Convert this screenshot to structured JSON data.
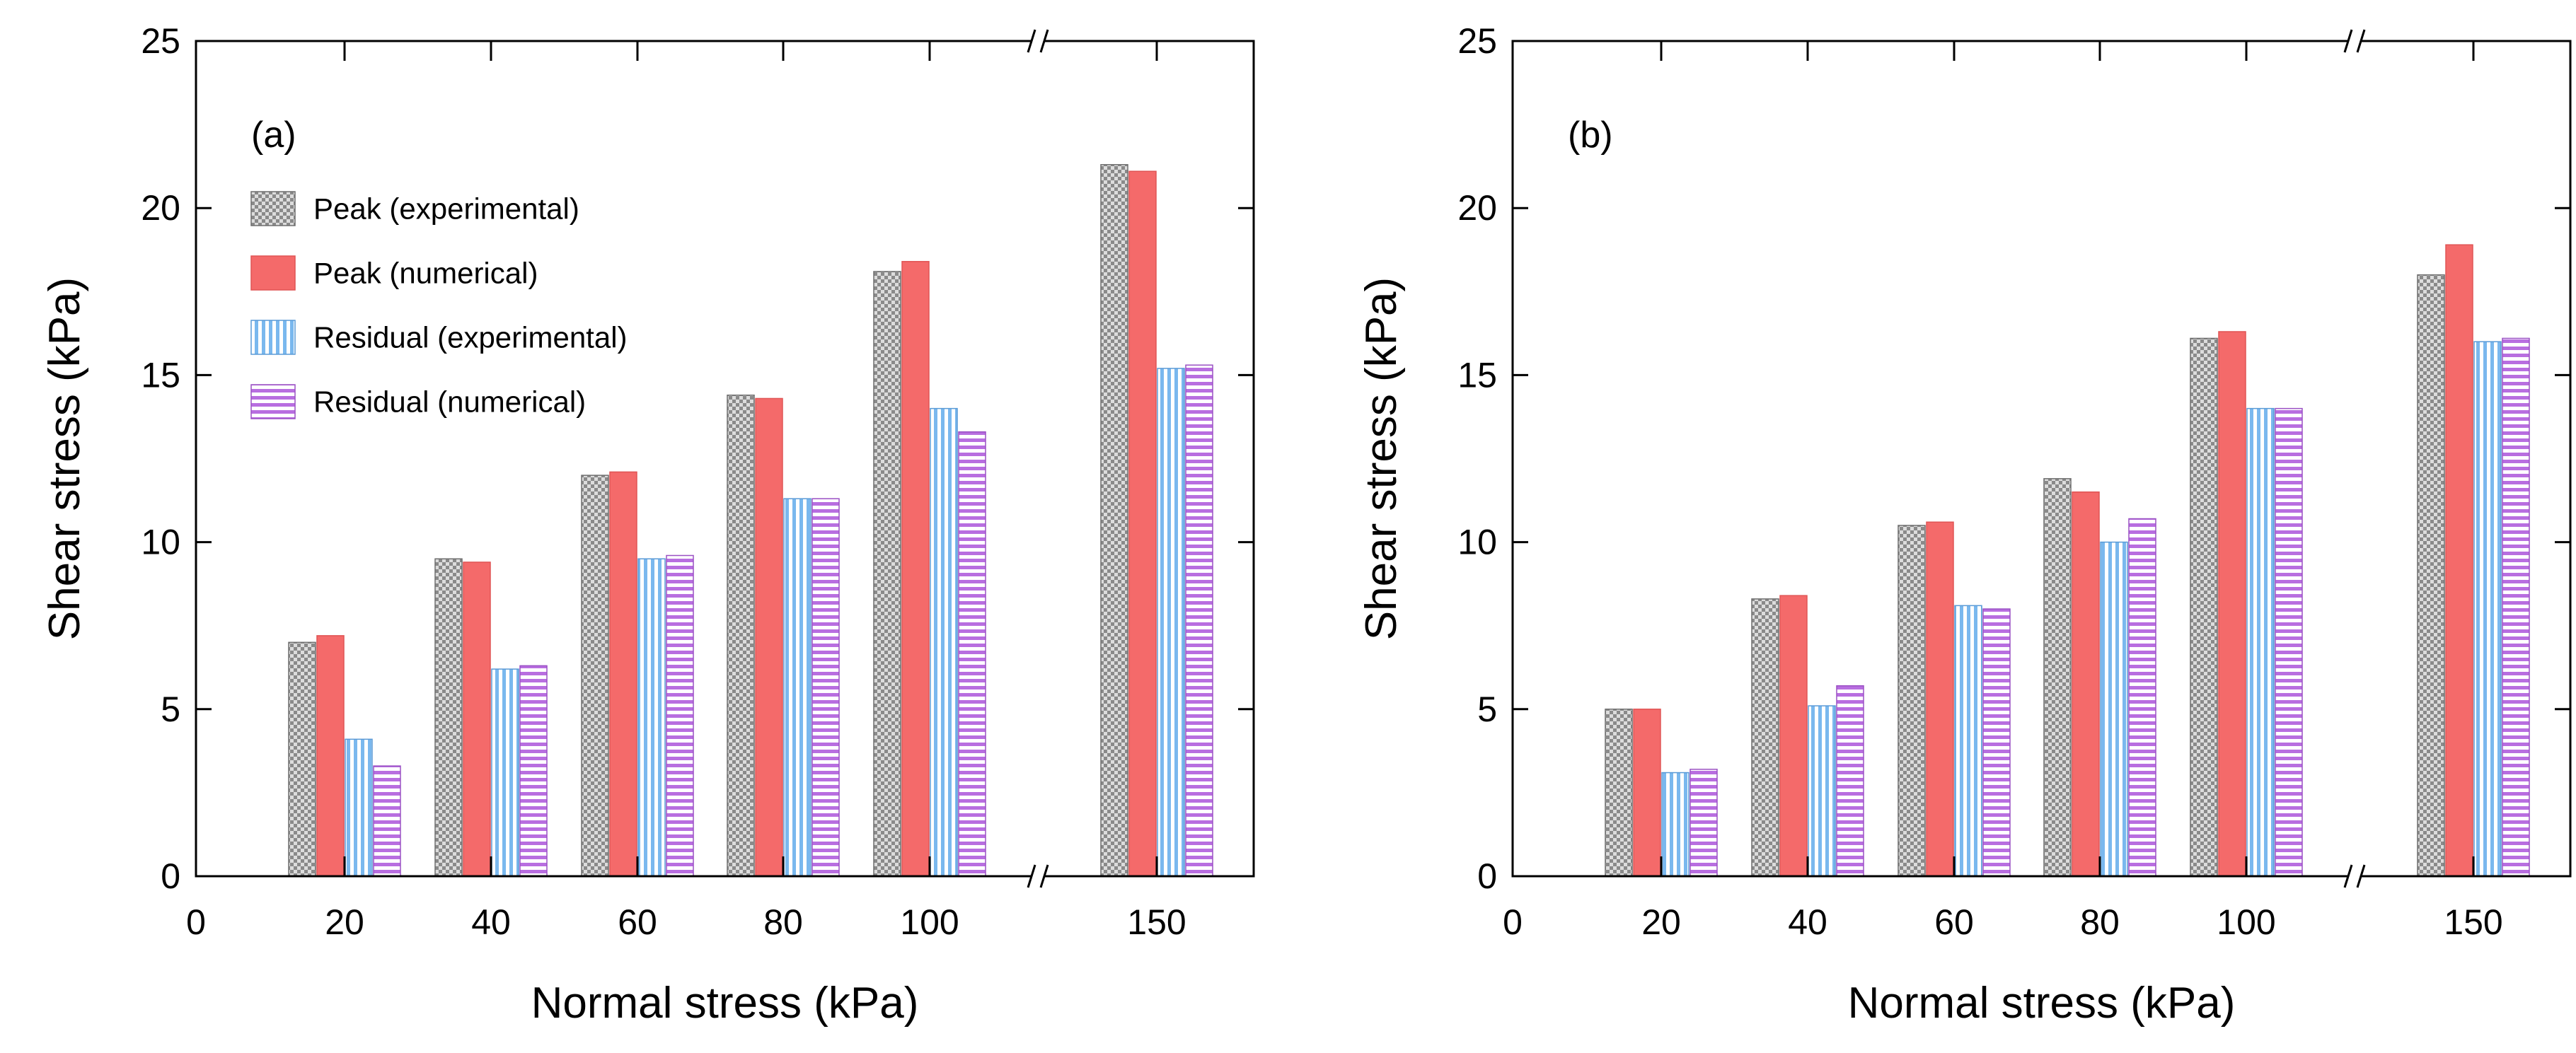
{
  "figure": {
    "colors": {
      "peak_experimental": "#9a9a9a",
      "peak_numerical": "#f46a6a",
      "residual_experimental": "#7ab8ee",
      "residual_numerical": "#b86ee0",
      "axis": "#000000"
    },
    "patterns": {
      "peak_experimental": "checker",
      "peak_numerical": "solid",
      "residual_experimental": "vertical-stripes",
      "residual_numerical": "horizontal-stripes"
    }
  },
  "chart_data": [
    {
      "type": "bar",
      "panel_label": "(a)",
      "xlabel": "Normal stress (kPa)",
      "ylabel": "Shear stress (kPa)",
      "ylim": [
        0,
        25
      ],
      "yticks": [
        0,
        5,
        10,
        15,
        20,
        25
      ],
      "x_zero_label": "0",
      "categories": [
        "20",
        "40",
        "60",
        "80",
        "100",
        "150"
      ],
      "axis_break": "between 100 and 150",
      "legend_position": "top-left",
      "series": [
        {
          "name": "Peak (experimental)",
          "key": "peak_experimental",
          "values": [
            7.0,
            9.5,
            12.0,
            14.4,
            18.1,
            21.3
          ]
        },
        {
          "name": "Peak (numerical)",
          "key": "peak_numerical",
          "values": [
            7.2,
            9.4,
            12.1,
            14.3,
            18.4,
            21.1
          ]
        },
        {
          "name": "Residual (experimental)",
          "key": "residual_experimental",
          "values": [
            4.1,
            6.2,
            9.5,
            11.3,
            14.0,
            15.2
          ]
        },
        {
          "name": "Residual (numerical)",
          "key": "residual_numerical",
          "values": [
            3.3,
            6.3,
            9.6,
            11.3,
            13.3,
            15.3
          ]
        }
      ]
    },
    {
      "type": "bar",
      "panel_label": "(b)",
      "xlabel": "Normal stress (kPa)",
      "ylabel": "Shear stress (kPa)",
      "ylim": [
        0,
        25
      ],
      "yticks": [
        0,
        5,
        10,
        15,
        20,
        25
      ],
      "x_zero_label": "0",
      "categories": [
        "20",
        "40",
        "60",
        "80",
        "100",
        "150"
      ],
      "axis_break": "between 100 and 150",
      "series": [
        {
          "key": "peak_experimental",
          "values": [
            5.0,
            8.3,
            10.5,
            11.9,
            16.1,
            18.0
          ]
        },
        {
          "key": "peak_numerical",
          "values": [
            5.0,
            8.4,
            10.6,
            11.5,
            16.3,
            18.9
          ]
        },
        {
          "key": "residual_experimental",
          "values": [
            3.1,
            5.1,
            8.1,
            10.0,
            14.0,
            16.0
          ]
        },
        {
          "key": "residual_numerical",
          "values": [
            3.2,
            5.7,
            8.0,
            10.7,
            14.0,
            16.1
          ]
        }
      ]
    }
  ]
}
